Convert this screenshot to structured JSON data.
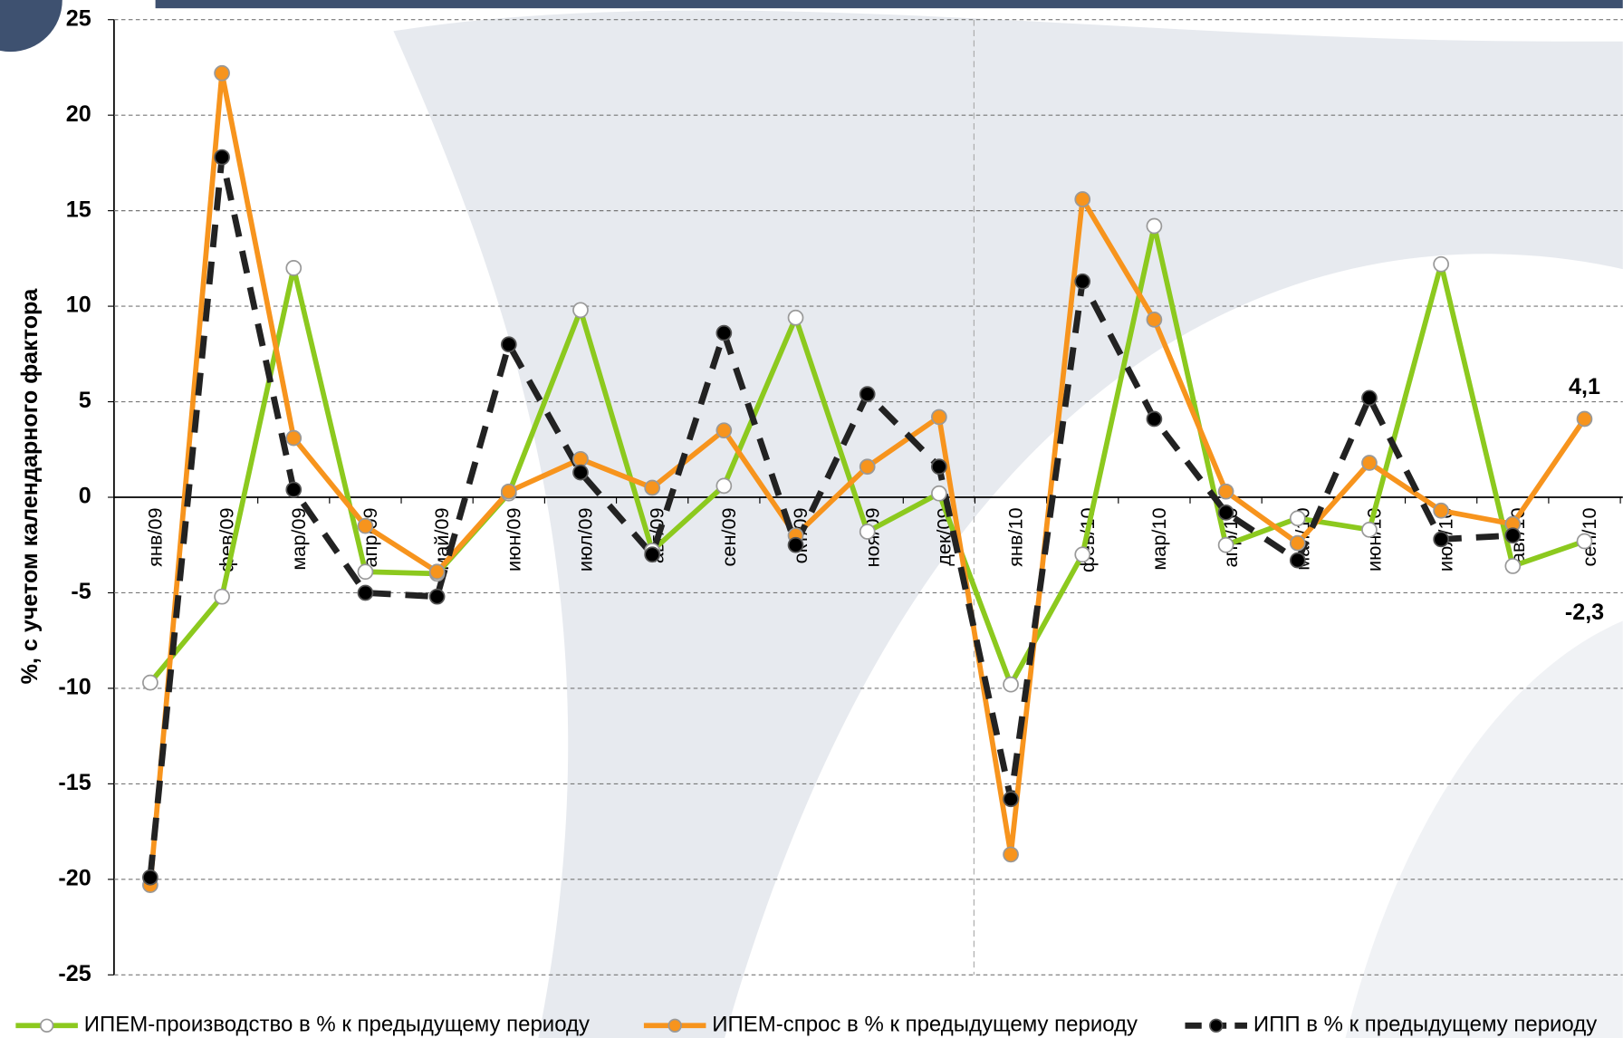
{
  "chart_data": {
    "type": "line",
    "ylabel": "%, с учетом календарного фактора",
    "categories": [
      "янв/09",
      "фев/09",
      "мар/09",
      "апр/09",
      "май/09",
      "июн/09",
      "июл/09",
      "авг/09",
      "сен/09",
      "окт/09",
      "ноя/09",
      "дек/09",
      "янв/10",
      "фев/10",
      "мар/10",
      "апр/10",
      "май/10",
      "июн/10",
      "июл/10",
      "авг/10",
      "сен/10"
    ],
    "series": [
      {
        "name": "ИПЕМ-производство в % к предыдущему периоду",
        "color": "#8cc91e",
        "values": [
          -9.7,
          -5.2,
          12.0,
          -3.9,
          -4.0,
          0.2,
          9.8,
          -2.8,
          0.6,
          9.4,
          -1.8,
          0.2,
          -9.8,
          -3.0,
          14.2,
          -2.5,
          -1.1,
          -1.7,
          12.2,
          -3.6,
          -2.3
        ],
        "value_labels": [
          null,
          null,
          null,
          null,
          null,
          null,
          null,
          null,
          null,
          null,
          null,
          null,
          null,
          null,
          null,
          null,
          null,
          null,
          null,
          null,
          "-2,3"
        ]
      },
      {
        "name": "ИПЕМ-спрос в % к предыдущему периоду",
        "color": "#f7941d",
        "values": [
          -20.3,
          22.2,
          3.1,
          -1.5,
          -3.9,
          0.3,
          2.0,
          0.5,
          3.5,
          -2.0,
          1.6,
          4.2,
          -18.7,
          15.6,
          9.3,
          0.3,
          -2.4,
          1.8,
          -0.7,
          -1.4,
          4.1
        ],
        "value_labels": [
          null,
          null,
          null,
          null,
          null,
          null,
          null,
          null,
          null,
          null,
          null,
          null,
          null,
          null,
          null,
          null,
          null,
          null,
          null,
          null,
          "4,1"
        ]
      },
      {
        "name": "ИПП в % к предыдущему периоду",
        "color": "#222222",
        "values": [
          -19.9,
          17.8,
          0.4,
          -5.0,
          -5.2,
          8.0,
          1.3,
          -3.0,
          8.6,
          -2.5,
          5.4,
          1.6,
          -15.8,
          11.3,
          4.1,
          -0.8,
          -3.3,
          5.2,
          -2.2,
          -2.0,
          null
        ]
      }
    ],
    "ylim": [
      -25,
      25
    ],
    "yticks": [
      -25,
      -20,
      -15,
      -10,
      -5,
      0,
      5,
      10,
      15,
      20,
      25
    ],
    "grid": true
  }
}
